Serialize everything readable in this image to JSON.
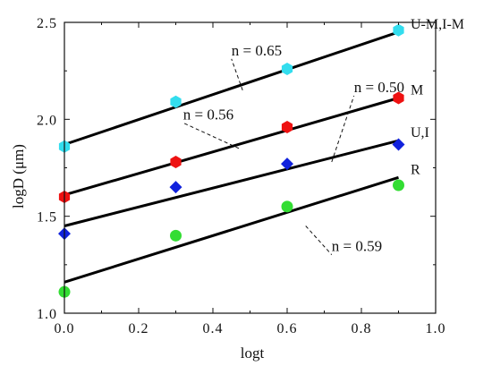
{
  "chart_data": {
    "type": "scatter",
    "xlabel": "logt",
    "ylabel": "logD (μm)",
    "xlim": [
      0.0,
      1.0
    ],
    "ylim": [
      1.0,
      2.5
    ],
    "xticks": [
      "0.0",
      "0.2",
      "0.4",
      "0.6",
      "0.8",
      "1.0"
    ],
    "yticks": [
      "1.0",
      "1.5",
      "2.0",
      "2.5"
    ],
    "grid": false,
    "series": [
      {
        "name": "U-M,I-M",
        "marker": "hexagon",
        "color": "#33ddee",
        "x": [
          0.0,
          0.3,
          0.6,
          0.9
        ],
        "y": [
          1.86,
          2.09,
          2.26,
          2.46
        ],
        "fit": {
          "x": [
            0.0,
            0.9
          ],
          "y": [
            1.87,
            2.45
          ]
        }
      },
      {
        "name": "M",
        "marker": "hexagon",
        "color": "#ee1111",
        "x": [
          0.0,
          0.3,
          0.6,
          0.9
        ],
        "y": [
          1.6,
          1.78,
          1.96,
          2.11
        ],
        "fit": {
          "x": [
            0.0,
            0.9
          ],
          "y": [
            1.61,
            2.11
          ]
        }
      },
      {
        "name": "U,I",
        "marker": "diamond",
        "color": "#1122dd",
        "x": [
          0.0,
          0.3,
          0.6,
          0.9
        ],
        "y": [
          1.41,
          1.65,
          1.77,
          1.87
        ],
        "fit": {
          "x": [
            0.0,
            0.9
          ],
          "y": [
            1.45,
            1.89
          ]
        }
      },
      {
        "name": "R",
        "marker": "circle",
        "color": "#33dd33",
        "x": [
          0.0,
          0.3,
          0.6,
          0.9
        ],
        "y": [
          1.11,
          1.4,
          1.55,
          1.66
        ],
        "fit": {
          "x": [
            0.0,
            0.9
          ],
          "y": [
            1.16,
            1.7
          ]
        }
      }
    ],
    "annotations": [
      {
        "text": "n = 0.65",
        "x": 0.45,
        "y": 2.33,
        "to": [
          0.48,
          2.15
        ]
      },
      {
        "text": "n = 0.56",
        "x": 0.32,
        "y": 2.0,
        "to": [
          0.47,
          1.85
        ]
      },
      {
        "text": "n = 0.50",
        "x": 0.78,
        "y": 2.14,
        "to": [
          0.72,
          1.78
        ]
      },
      {
        "text": "n = 0.59",
        "x": 0.72,
        "y": 1.32,
        "to": [
          0.65,
          1.45
        ]
      }
    ]
  }
}
